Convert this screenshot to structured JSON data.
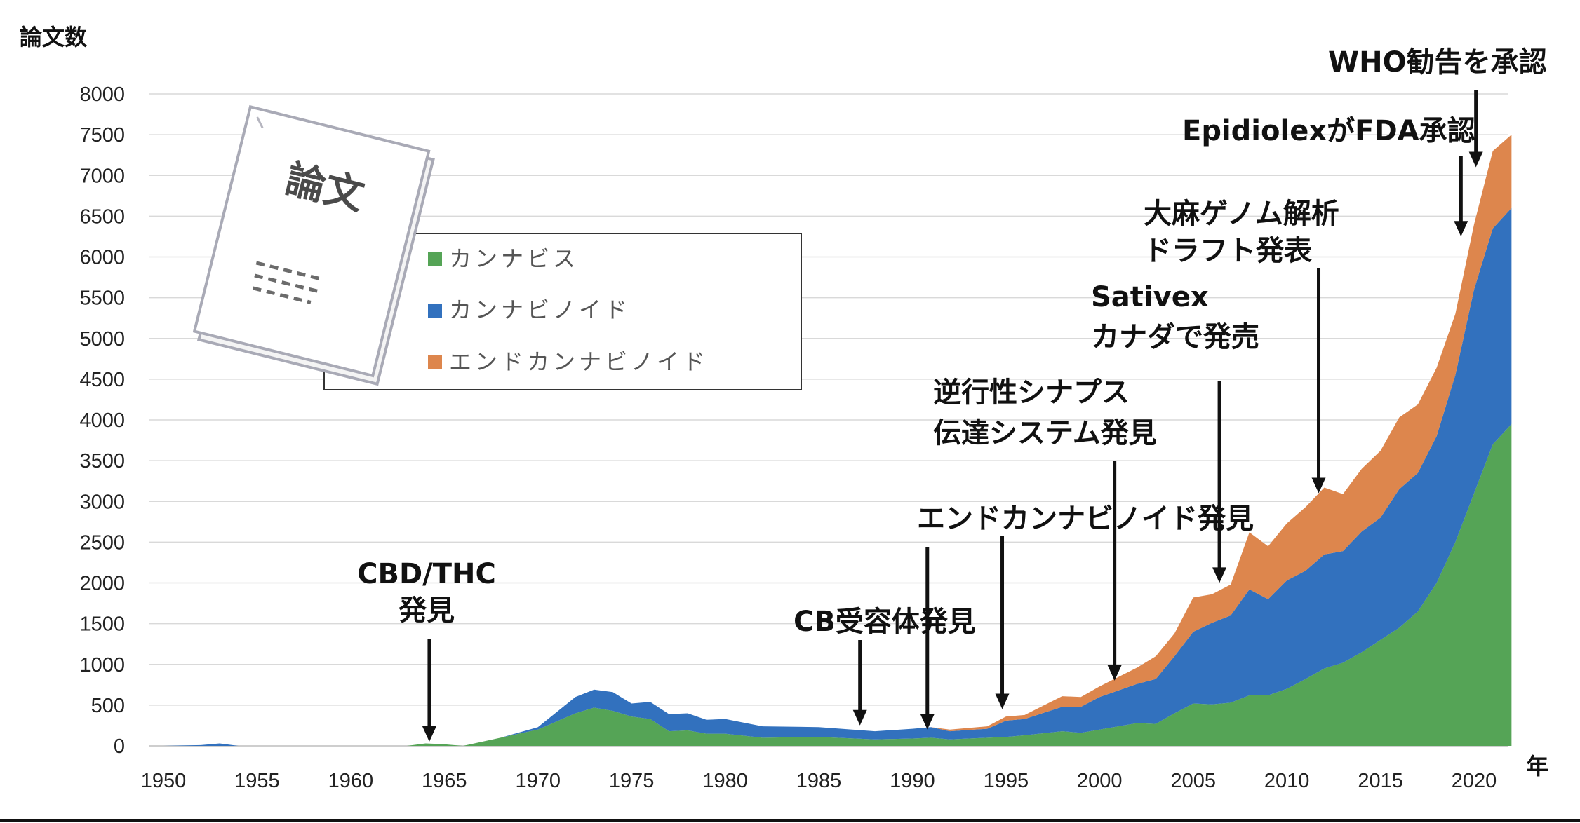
{
  "chart_data": {
    "type": "area",
    "stacked": true,
    "ylabel": "論文数",
    "xlabel": "年",
    "ylim": [
      0,
      8000
    ],
    "yticks": [
      0,
      500,
      1000,
      1500,
      2000,
      2500,
      3000,
      3500,
      4000,
      4500,
      5000,
      5500,
      6000,
      6500,
      7000,
      7500,
      8000
    ],
    "xlim": [
      1950,
      2022
    ],
    "xticks": [
      1950,
      1955,
      1960,
      1965,
      1970,
      1975,
      1980,
      1985,
      1990,
      1995,
      2000,
      2005,
      2010,
      2015,
      2020
    ],
    "grid": "horizontal",
    "x": [
      1950,
      1952,
      1953,
      1954,
      1963,
      1964,
      1965,
      1966,
      1968,
      1970,
      1972,
      1973,
      1974,
      1975,
      1976,
      1977,
      1978,
      1979,
      1980,
      1982,
      1985,
      1988,
      1990,
      1991,
      1992,
      1994,
      1995,
      1996,
      1998,
      1999,
      2000,
      2002,
      2003,
      2004,
      2005,
      2006,
      2007,
      2008,
      2009,
      2010,
      2011,
      2012,
      2013,
      2014,
      2015,
      2016,
      2017,
      2018,
      2019,
      2020,
      2021,
      2022
    ],
    "series": [
      {
        "name": "カンナビス",
        "color": "#55a456",
        "values": [
          0,
          0,
          0,
          0,
          0,
          30,
          20,
          0,
          100,
          200,
          400,
          470,
          430,
          360,
          330,
          180,
          190,
          150,
          150,
          100,
          110,
          80,
          90,
          100,
          80,
          100,
          110,
          130,
          180,
          160,
          200,
          280,
          270,
          400,
          520,
          510,
          530,
          620,
          620,
          700,
          820,
          950,
          1020,
          1150,
          1300,
          1450,
          1650,
          2000,
          2500,
          3100,
          3700,
          3950
        ]
      },
      {
        "name": "カンナビノイド",
        "color": "#3271be",
        "values": [
          0,
          10,
          30,
          0,
          0,
          0,
          0,
          0,
          0,
          30,
          200,
          220,
          230,
          160,
          210,
          210,
          210,
          170,
          180,
          140,
          120,
          100,
          120,
          130,
          100,
          110,
          200,
          200,
          300,
          320,
          400,
          480,
          550,
          700,
          880,
          1000,
          1070,
          1300,
          1180,
          1330,
          1330,
          1400,
          1370,
          1480,
          1500,
          1700,
          1700,
          1800,
          2050,
          2500,
          2650,
          2650
        ]
      },
      {
        "name": "エンドカンナビノイド",
        "color": "#dd864d",
        "values": [
          0,
          0,
          0,
          0,
          0,
          0,
          0,
          0,
          0,
          0,
          0,
          0,
          0,
          0,
          0,
          0,
          0,
          0,
          0,
          0,
          0,
          0,
          0,
          0,
          20,
          30,
          50,
          50,
          130,
          120,
          130,
          200,
          280,
          280,
          420,
          350,
          380,
          700,
          650,
          700,
          780,
          820,
          700,
          770,
          820,
          880,
          840,
          840,
          750,
          800,
          950,
          900
        ]
      }
    ],
    "annotations": [
      {
        "lines": [
          "CBD/THC",
          "発見"
        ],
        "x": 1964.2,
        "y": 0
      },
      {
        "lines": [
          "CB受容体発見"
        ],
        "x": 1987.2,
        "y": 200
      },
      {
        "lines": [
          "エンドカンナビノイド発見"
        ],
        "x": 1990.8,
        "y": 150
      },
      {
        "lines": [
          "",
          ""
        ],
        "x": 1994.8,
        "y": 400
      },
      {
        "lines": [
          "逆行性シナプス",
          "伝達システム発見"
        ],
        "x": 2000.8,
        "y": 750
      },
      {
        "lines": [
          "Sativex",
          "カナダで発売"
        ],
        "x": 2006.4,
        "y": 1950
      },
      {
        "lines": [
          "大麻ゲノム解析",
          "ドラフト発表"
        ],
        "x": 2011.7,
        "y": 3050
      },
      {
        "lines": [
          "EpidiolexがFDA承認"
        ],
        "x": 2019.3,
        "y": 6200
      },
      {
        "lines": [
          "WHO勧告を承認"
        ],
        "x": 2020.1,
        "y": 7050
      }
    ]
  },
  "illustration": {
    "title": "論文",
    "icon": "paper-document-icon"
  }
}
